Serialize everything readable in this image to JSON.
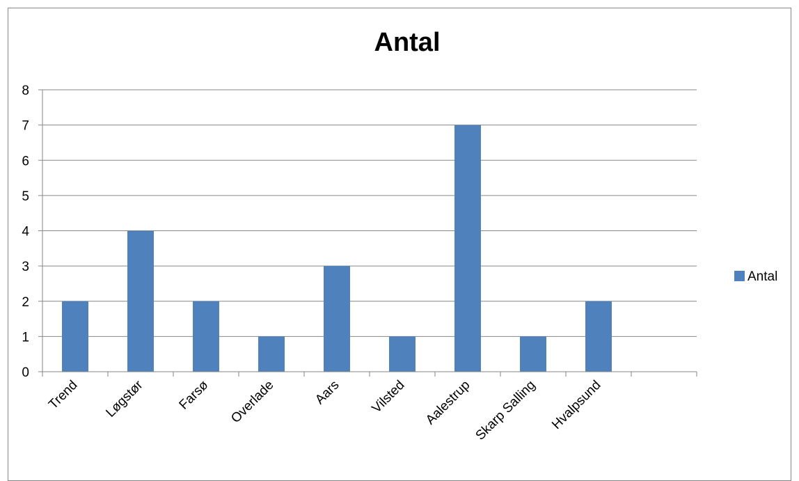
{
  "chart_data": {
    "type": "bar",
    "title": "Antal",
    "xlabel": "",
    "ylabel": "",
    "categories": [
      "Trend",
      "Løgstør",
      "Farsø",
      "Overlade",
      "Aars",
      "Vilsted",
      "Aalestrup",
      "Skarp Salling",
      "Hvalpsund",
      ""
    ],
    "series": [
      {
        "name": "Antal",
        "values": [
          2,
          4,
          2,
          1,
          3,
          1,
          7,
          1,
          2,
          null
        ]
      }
    ],
    "ylim": [
      0,
      8
    ],
    "yticks": [
      0,
      1,
      2,
      3,
      4,
      5,
      6,
      7,
      8
    ],
    "grid": true,
    "legend": "right",
    "colors": {
      "bar": "#4f81bd",
      "grid": "#868686",
      "axis": "#868686"
    }
  }
}
